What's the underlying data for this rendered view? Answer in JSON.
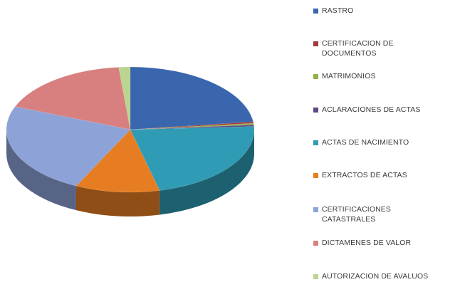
{
  "chart_data": {
    "type": "pie",
    "title": "",
    "legend_position": "right",
    "categories": [
      "RASTRO",
      "CERTIFICACION DE DOCUMENTOS",
      "MATRIMONIOS",
      "ACLARACIONES DE ACTAS",
      "ACTAS DE NACIMIENTO",
      "EXTRACTOS DE ACTAS",
      "CERTIFICACIONES CATASTRALES",
      "DICTAMENES DE VALOR",
      "AUTORIZACION DE AVALUOS"
    ],
    "values": [
      23,
      0.4,
      0.4,
      0.4,
      22,
      11,
      23.8,
      17.5,
      1.5
    ],
    "colors": [
      "#3a66ad",
      "#a33a3d",
      "#8fb24d",
      "#5c4a86",
      "#2f9bb5",
      "#e77d22",
      "#8da2d6",
      "#d8807f",
      "#bcd492"
    ]
  },
  "legend": {
    "items": [
      {
        "lines": [
          "RASTRO"
        ],
        "color": "#3a66ad"
      },
      {
        "lines": [
          "CERTIFICACION DE",
          "DOCUMENTOS"
        ],
        "color": "#a33a3d"
      },
      {
        "lines": [
          "MATRIMONIOS"
        ],
        "color": "#8fb24d"
      },
      {
        "lines": [
          "ACLARACIONES DE ACTAS"
        ],
        "color": "#5c4a86"
      },
      {
        "lines": [
          "ACTAS DE NACIMIENTO"
        ],
        "color": "#2f9bb5"
      },
      {
        "lines": [
          "EXTRACTOS DE ACTAS"
        ],
        "color": "#e77d22"
      },
      {
        "lines": [
          "CERTIFICACIONES",
          "CATASTRALES"
        ],
        "color": "#8da2d6"
      },
      {
        "lines": [
          "DICTAMENES DE VALOR"
        ],
        "color": "#d8807f"
      },
      {
        "lines": [
          "AUTORIZACION DE AVALUOS"
        ],
        "color": "#bcd492"
      }
    ]
  }
}
